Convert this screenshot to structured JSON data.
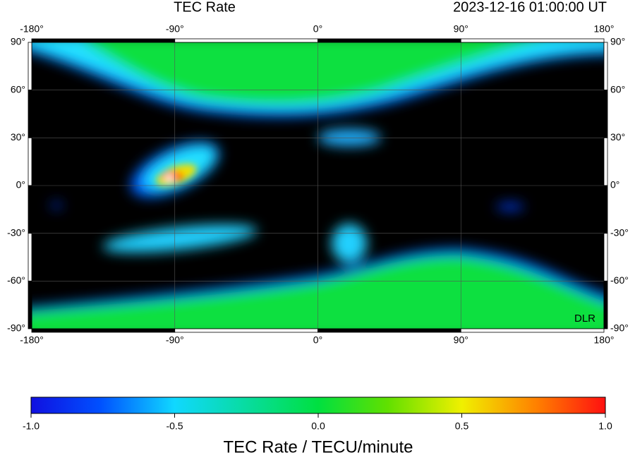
{
  "header": {
    "title": "TEC Rate",
    "timestamp": "2023-12-16  01:00:00 UT"
  },
  "map": {
    "lon_ticks": [
      {
        "value": -180,
        "label": "-180°"
      },
      {
        "value": -90,
        "label": "-90°"
      },
      {
        "value": 0,
        "label": "0°"
      },
      {
        "value": 90,
        "label": "90°"
      },
      {
        "value": 180,
        "label": "180°"
      }
    ],
    "lat_ticks": [
      {
        "value": 90,
        "label": "90°"
      },
      {
        "value": 60,
        "label": "60°"
      },
      {
        "value": 30,
        "label": "30°"
      },
      {
        "value": 0,
        "label": "0°"
      },
      {
        "value": -30,
        "label": "-30°"
      },
      {
        "value": -60,
        "label": "-60°"
      },
      {
        "value": -90,
        "label": "-90°"
      }
    ],
    "credit": "DLR"
  },
  "colorbar": {
    "ticks": [
      {
        "value": -1,
        "label": "-1.0"
      },
      {
        "value": -0.5,
        "label": "-0.5"
      },
      {
        "value": 0,
        "label": "0.0"
      },
      {
        "value": 0.5,
        "label": "0.5"
      },
      {
        "value": 1,
        "label": "1.0"
      }
    ],
    "label": "TEC Rate / TECU/minute"
  }
}
